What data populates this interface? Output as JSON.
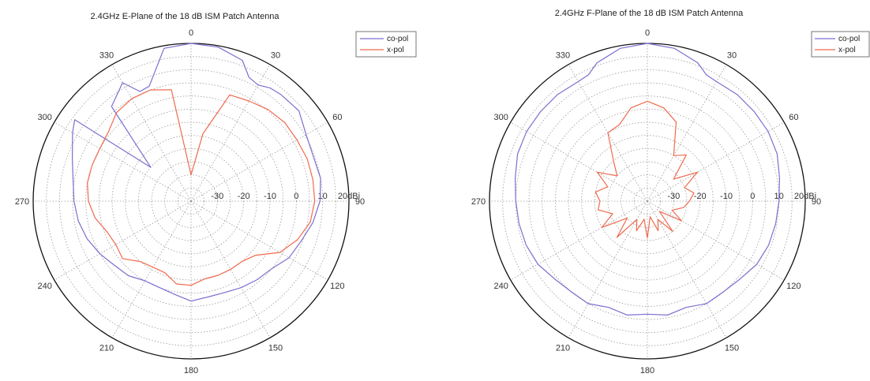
{
  "colors": {
    "co_pol": "#7b6fcf",
    "x_pol": "#f06a4e"
  },
  "chart_data": [
    {
      "type": "polar",
      "title": "2.4GHz E-Plane of the 18 dB ISM Patch Antenna",
      "theta_labels": [
        "0",
        "30",
        "60",
        "90",
        "120",
        "150",
        "180",
        "210",
        "240",
        "270",
        "300",
        "330"
      ],
      "r_labels": [
        "-30",
        "-20",
        "-10",
        "0",
        "10",
        "20dBi"
      ],
      "r_ticks": [
        -30,
        -20,
        -10,
        0,
        10,
        20
      ],
      "rlim": [
        -40,
        20
      ],
      "grid": true,
      "legend": "top-right",
      "series": [
        {
          "name": "co-pol",
          "color": "#7b6fcf",
          "theta": [
            0,
            10,
            20,
            25,
            30,
            35,
            40,
            50,
            60,
            70,
            80,
            90,
            100,
            110,
            120,
            130,
            140,
            150,
            160,
            170,
            180,
            190,
            200,
            210,
            220,
            230,
            240,
            250,
            260,
            270,
            280,
            290,
            300,
            305,
            310,
            320,
            330,
            335,
            340,
            350
          ],
          "r": [
            20,
            19.5,
            17,
            12,
            11,
            12.5,
            13,
            13.5,
            10.5,
            9.5,
            10,
            9,
            7,
            4.5,
            3,
            0,
            -1,
            -2,
            -3,
            -3,
            -2,
            -4,
            -5,
            -5,
            -3,
            -2,
            0,
            2,
            3.5,
            4.5,
            5.5,
            8,
            12,
            14,
            -20,
            7,
            12,
            6,
            6.5,
            19
          ]
        },
        {
          "name": "x-pol",
          "color": "#f06a4e",
          "theta": [
            0,
            10,
            20,
            30,
            40,
            50,
            60,
            70,
            80,
            90,
            100,
            110,
            120,
            130,
            140,
            150,
            160,
            170,
            180,
            190,
            200,
            210,
            220,
            230,
            240,
            250,
            260,
            270,
            280,
            290,
            300,
            310,
            320,
            330,
            340,
            350
          ],
          "r": [
            -30,
            -14,
            3,
            4,
            5.5,
            6.5,
            6.5,
            7,
            7,
            7,
            6,
            3,
            -1,
            -8,
            -10,
            -10,
            -10,
            -10,
            -8,
            -8,
            -11,
            -11,
            -10,
            -6,
            -7,
            -6,
            -3,
            -1,
            0,
            0,
            0,
            1,
            4,
            5,
            5,
            3
          ]
        }
      ]
    },
    {
      "type": "polar",
      "title": "2.4GHz F-Plane of the 18 dB ISM Patch Antenna",
      "theta_labels": [
        "0",
        "30",
        "60",
        "90",
        "120",
        "150",
        "180",
        "210",
        "240",
        "270",
        "300",
        "330"
      ],
      "r_labels": [
        "-30",
        "-20",
        "-10",
        "0",
        "10",
        "20dBi"
      ],
      "r_ticks": [
        -30,
        -20,
        -10,
        0,
        10,
        20
      ],
      "rlim": [
        -40,
        20
      ],
      "grid": true,
      "legend": "top-right",
      "series": [
        {
          "name": "co-pol",
          "color": "#7b6fcf",
          "theta": [
            0,
            10,
            20,
            25,
            30,
            40,
            50,
            60,
            70,
            80,
            90,
            100,
            110,
            120,
            130,
            140,
            150,
            160,
            170,
            180,
            190,
            200,
            210,
            220,
            230,
            240,
            250,
            260,
            270,
            280,
            290,
            300,
            310,
            320,
            330,
            335,
            340,
            350
          ],
          "r": [
            20,
            19,
            16,
            13,
            12.5,
            13,
            13,
            13,
            12.5,
            11,
            10,
            9.5,
            9,
            8,
            6,
            5,
            5,
            3,
            4,
            3,
            4,
            3,
            5,
            5,
            6,
            8,
            9,
            9.5,
            10,
            11,
            12.5,
            13,
            13,
            13,
            12.5,
            13,
            16,
            19
          ]
        },
        {
          "name": "x-pol",
          "color": "#f06a4e",
          "theta": [
            0,
            10,
            20,
            30,
            40,
            50,
            60,
            70,
            80,
            90,
            100,
            110,
            120,
            130,
            140,
            150,
            160,
            170,
            180,
            190,
            200,
            210,
            220,
            230,
            240,
            250,
            260,
            270,
            280,
            290,
            300,
            310,
            320,
            330,
            340,
            350
          ],
          "r": [
            -2,
            -4,
            -8,
            -20,
            -17,
            -27,
            -18,
            -25,
            -22,
            -24,
            -26,
            -30,
            -25,
            -34,
            -25,
            -32,
            -28,
            -34,
            -26,
            -33,
            -28,
            -32,
            -22,
            -30,
            -20,
            -26,
            -21,
            -22,
            -20,
            -24,
            -18,
            -25,
            -20,
            -10,
            -9,
            -4
          ]
        }
      ]
    }
  ]
}
